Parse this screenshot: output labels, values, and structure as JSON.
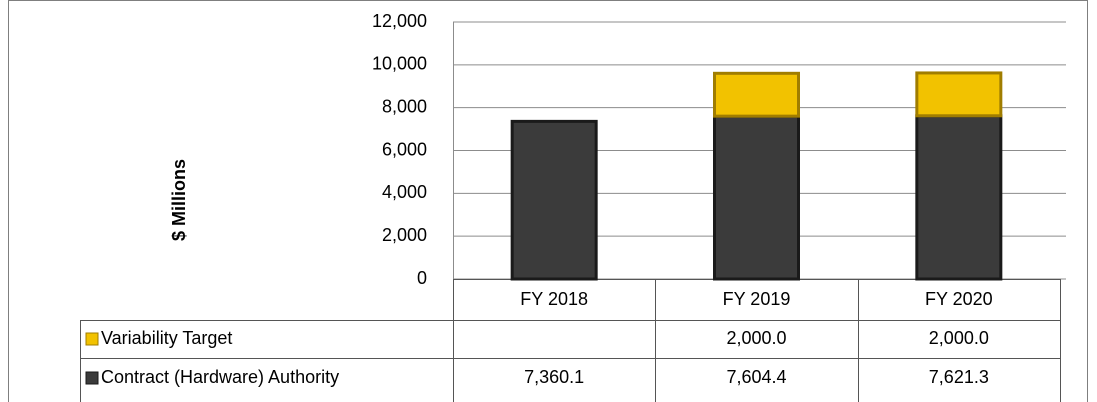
{
  "chart_data": {
    "type": "stacked_bar",
    "y_label": "$ Millions",
    "categories": [
      "FY 2018",
      "FY 2019",
      "FY 2020"
    ],
    "series": [
      {
        "name": "Variability Target",
        "color": "#f2c200",
        "values": [
          null,
          2000.0,
          2000.0
        ],
        "value_labels": [
          null,
          "2,000.0",
          "2,000.0"
        ]
      },
      {
        "name": "Contract (Hardware) Authority",
        "color": "#3b3b3b",
        "values": [
          7360.1,
          7604.4,
          7621.3
        ],
        "value_labels": [
          "7,360.1",
          "7,604.4",
          "7,621.3"
        ]
      }
    ],
    "ylim": [
      0,
      12000
    ],
    "yticks": [
      0,
      {
        "value": 2000,
        "label": "2,000"
      },
      {
        "value": 4000,
        "label": "4,000"
      },
      {
        "value": 6000,
        "label": "6,000"
      },
      {
        "value": 8000,
        "label": "8,000"
      },
      {
        "value": 10000,
        "label": "10,000"
      },
      {
        "value": 12000,
        "label": "12,000"
      }
    ],
    "grid": true
  }
}
